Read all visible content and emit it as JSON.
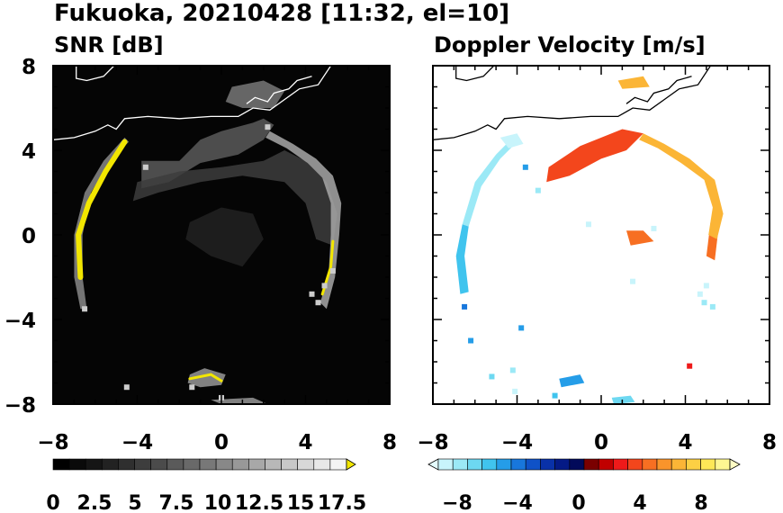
{
  "figure": {
    "title": "Fukuoka, 20210428 [11:32, el=10]"
  },
  "chart_data": [
    {
      "type": "heatmap",
      "title": "SNR [dB]",
      "xlim": [
        -8,
        8
      ],
      "ylim": [
        -8,
        8
      ],
      "xticks": [
        "−8",
        "−4",
        "0",
        "4",
        "8"
      ],
      "yticks": [
        "8",
        "4",
        "0",
        "−4",
        "−8"
      ],
      "background": "#050505",
      "coastline_color": "#ffffff",
      "colorbar": {
        "range": [
          0,
          18.75
        ],
        "ticks": [
          "0",
          "2.5",
          "5",
          "7.5",
          "10",
          "12.5",
          "15",
          "17.5"
        ],
        "colors": [
          "#000000",
          "#0a0a0a",
          "#151515",
          "#222222",
          "#2f2f2f",
          "#3d3d3d",
          "#4b4b4b",
          "#5a5a5a",
          "#696969",
          "#787878",
          "#888888",
          "#989898",
          "#a8a8a8",
          "#b8b8b8",
          "#c8c8c8",
          "#d8d8d8",
          "#e8e8e8",
          "#f4f4f4"
        ],
        "extend_color": "#f2e600"
      },
      "echo_regions": [
        {
          "name": "north-sea-clutter",
          "level": 7,
          "pts": [
            [
              -3.8,
              3.5
            ],
            [
              -2,
              3.5
            ],
            [
              -1,
              4.5
            ],
            [
              0,
              4.9
            ],
            [
              1.5,
              5.3
            ],
            [
              2,
              5.5
            ],
            [
              2.5,
              5.2
            ],
            [
              2,
              4.5
            ],
            [
              0.8,
              3.8
            ],
            [
              -1,
              3.4
            ],
            [
              -2.5,
              2.5
            ],
            [
              -3.8,
              2.2
            ]
          ]
        },
        {
          "name": "north-sea-clutter-2",
          "level": 5,
          "pts": [
            [
              -4,
              2.5
            ],
            [
              -2,
              3
            ],
            [
              0,
              3.2
            ],
            [
              2,
              3.5
            ],
            [
              3,
              4
            ],
            [
              4,
              3.5
            ],
            [
              5,
              2.5
            ],
            [
              5.5,
              1
            ],
            [
              5.3,
              -0.5
            ],
            [
              4.5,
              -0.2
            ],
            [
              4,
              1.5
            ],
            [
              3,
              2.5
            ],
            [
              1,
              2.8
            ],
            [
              -1,
              2.5
            ],
            [
              -3,
              2
            ],
            [
              -4.2,
              1.6
            ]
          ]
        },
        {
          "name": "north-plume",
          "level": 9,
          "pts": [
            [
              0.5,
              7
            ],
            [
              2,
              7.3
            ],
            [
              3,
              6.8
            ],
            [
              2.5,
              6
            ],
            [
              1,
              6
            ],
            [
              0.2,
              6.3
            ]
          ]
        },
        {
          "name": "east-ring",
          "level": 12,
          "pts": [
            [
              2.3,
              4.9
            ],
            [
              3.4,
              4.3
            ],
            [
              4.5,
              3.6
            ],
            [
              5.3,
              2.8
            ],
            [
              5.7,
              1.5
            ],
            [
              5.6,
              0
            ],
            [
              5.4,
              -2
            ],
            [
              5,
              -3.5
            ],
            [
              4.7,
              -3.2
            ],
            [
              5.1,
              -1.8
            ],
            [
              5.2,
              0
            ],
            [
              5.2,
              1.5
            ],
            [
              4.8,
              2.7
            ],
            [
              4.1,
              3.4
            ],
            [
              3.1,
              4.1
            ],
            [
              2.1,
              4.6
            ]
          ]
        },
        {
          "name": "center-clutter",
          "level": 3,
          "pts": [
            [
              -1.5,
              0.6
            ],
            [
              0,
              1.3
            ],
            [
              1.5,
              1
            ],
            [
              2,
              -0.2
            ],
            [
              1,
              -1.5
            ],
            [
              -0.5,
              -1
            ],
            [
              -1.7,
              -0.2
            ]
          ]
        },
        {
          "name": "west-ring",
          "level": 10,
          "pts": [
            [
              -4.6,
              4.6
            ],
            [
              -5.6,
              3.5
            ],
            [
              -6.5,
              2
            ],
            [
              -7,
              0
            ],
            [
              -7,
              -2
            ],
            [
              -6.7,
              -3.5
            ],
            [
              -6.4,
              -3.5
            ],
            [
              -6.6,
              -2
            ],
            [
              -6.6,
              0
            ],
            [
              -6.2,
              2
            ],
            [
              -5.3,
              3.5
            ],
            [
              -4.4,
              4.4
            ]
          ]
        },
        {
          "name": "south-echo",
          "level": 11,
          "pts": [
            [
              -1.5,
              -6.6
            ],
            [
              -0.8,
              -6.3
            ],
            [
              0.2,
              -6.6
            ],
            [
              0,
              -7.1
            ],
            [
              -1,
              -7.2
            ],
            [
              -1.6,
              -7
            ]
          ]
        },
        {
          "name": "south-echo-2",
          "level": 11,
          "pts": [
            [
              -0.5,
              -7.8
            ],
            [
              1.5,
              -7.7
            ],
            [
              2.2,
              -8
            ],
            [
              0,
              -8
            ]
          ]
        }
      ],
      "echo_strips": [
        {
          "name": "strong-west-ring",
          "pts": [
            [
              -4.6,
              4.4
            ],
            [
              -5.5,
              3
            ],
            [
              -6.3,
              1.5
            ],
            [
              -6.8,
              0
            ],
            [
              -6.7,
              -2
            ]
          ],
          "color": "#f2e600",
          "width": 6
        },
        {
          "name": "strong-east-ring",
          "pts": [
            [
              4.8,
              -2.8
            ],
            [
              5.2,
              -1.5
            ],
            [
              5.3,
              -0.3
            ]
          ],
          "color": "#f2e600",
          "width": 3
        },
        {
          "name": "strong-south-echo",
          "pts": [
            [
              -1.5,
              -6.8
            ],
            [
              -0.5,
              -6.6
            ],
            [
              0,
              -6.9
            ]
          ],
          "color": "#f2e600",
          "width": 3
        }
      ],
      "echo_cells": [
        [
          -3.6,
          3.2
        ],
        [
          4.3,
          -2.8
        ],
        [
          4.9,
          -2.4
        ],
        [
          5.3,
          -1.7
        ],
        [
          4.6,
          -3.2
        ],
        [
          2.2,
          5.1
        ],
        [
          -1.4,
          -7.2
        ],
        [
          0,
          -7.7
        ],
        [
          -6.5,
          -3.5
        ],
        [
          -4.5,
          -7.2
        ]
      ]
    },
    {
      "type": "heatmap",
      "title": "Doppler Velocity [m/s]",
      "xlim": [
        -8,
        8
      ],
      "ylim": [
        -8,
        8
      ],
      "xticks": [
        "−8",
        "−4",
        "0",
        "4",
        "8"
      ],
      "yticks": [
        "8",
        "4",
        "0",
        "−4",
        "−8"
      ],
      "background": "#ffffff",
      "coastline_color": "#000000",
      "colorbar": {
        "range": [
          -10,
          10
        ],
        "ticks": [
          "−8",
          "−4",
          "0",
          "4",
          "8"
        ],
        "colors": [
          "#c8f4fb",
          "#9be9f6",
          "#6dd8f1",
          "#40c4ee",
          "#259de8",
          "#1877dc",
          "#0f52c8",
          "#0931a8",
          "#041a86",
          "#020a5a",
          "#7a0000",
          "#c00000",
          "#ee1a1a",
          "#f3461c",
          "#f76f22",
          "#f9942b",
          "#fbb536",
          "#fcd044",
          "#fde857",
          "#fdf792"
        ],
        "extend_low": "#e3fbfd",
        "extend_high": "#fefcc4"
      },
      "echo_regions": [
        {
          "name": "north-approach",
          "velocity": 3.0,
          "pts": [
            [
              -2.5,
              3.2
            ],
            [
              -1,
              4.2
            ],
            [
              1,
              5
            ],
            [
              2,
              4.8
            ],
            [
              1.2,
              4
            ],
            [
              0,
              3.6
            ],
            [
              -1.5,
              2.8
            ],
            [
              -2.6,
              2.5
            ]
          ]
        },
        {
          "name": "north-plume",
          "velocity": 6.5,
          "pts": [
            [
              0.8,
              7.3
            ],
            [
              2,
              7.5
            ],
            [
              2.3,
              7
            ],
            [
              1,
              6.9
            ]
          ]
        },
        {
          "name": "east-ring-south",
          "velocity": 4.5,
          "pts": [
            [
              5,
              -1
            ],
            [
              5.4,
              -1.2
            ],
            [
              5.6,
              0.5
            ],
            [
              5.2,
              0.6
            ]
          ]
        },
        {
          "name": "center-echo",
          "velocity": 4.0,
          "pts": [
            [
              1.2,
              0.2
            ],
            [
              2,
              0.2
            ],
            [
              2.5,
              -0.3
            ],
            [
              1.4,
              -0.5
            ]
          ]
        },
        {
          "name": "west-blue",
          "velocity": -8.5,
          "pts": [
            [
              -4.2,
              4.6
            ],
            [
              -5,
              3.8
            ],
            [
              -6,
              2.5
            ],
            [
              -6.6,
              0.5
            ],
            [
              -6.3,
              0.4
            ],
            [
              -5.7,
              2.3
            ],
            [
              -4.8,
              3.6
            ],
            [
              -4,
              4.4
            ]
          ]
        },
        {
          "name": "west-cyan",
          "velocity": -6.5,
          "pts": [
            [
              -6.6,
              0.5
            ],
            [
              -6.9,
              -1
            ],
            [
              -6.7,
              -2.8
            ],
            [
              -6.3,
              -2.7
            ],
            [
              -6.5,
              -1
            ],
            [
              -6.3,
              0.4
            ]
          ]
        },
        {
          "name": "dark-blue-north",
          "velocity": -9.6,
          "pts": [
            [
              -4.8,
              4.6
            ],
            [
              -4,
              4.8
            ],
            [
              -3.7,
              4.3
            ],
            [
              -4.4,
              4.1
            ]
          ]
        },
        {
          "name": "east-ring",
          "velocity": 6.5,
          "pts": [
            [
              2,
              4.8
            ],
            [
              3,
              4.3
            ],
            [
              4.2,
              3.6
            ],
            [
              5.4,
              2.6
            ],
            [
              5.8,
              1
            ],
            [
              5.5,
              -0.2
            ],
            [
              5.1,
              0
            ],
            [
              5.3,
              1.3
            ],
            [
              4.9,
              2.6
            ],
            [
              3.8,
              3.4
            ],
            [
              2.7,
              4.1
            ],
            [
              1.8,
              4.5
            ]
          ]
        },
        {
          "name": "south-cells",
          "velocity": -5.2,
          "pts": [
            [
              -2,
              -6.8
            ],
            [
              -1,
              -6.6
            ],
            [
              -0.8,
              -7
            ],
            [
              -1.9,
              -7.2
            ]
          ]
        },
        {
          "name": "south-cells-2",
          "velocity": -8,
          "pts": [
            [
              0.5,
              -7.7
            ],
            [
              1.4,
              -7.6
            ],
            [
              1.6,
              -7.9
            ],
            [
              0.6,
              -8
            ]
          ]
        }
      ],
      "echo_cells": [
        [
          -3.6,
          3.2,
          -6
        ],
        [
          -3,
          2.1,
          -9
        ],
        [
          4.9,
          -3.2,
          -9
        ],
        [
          5.3,
          -3.4,
          -8.8
        ],
        [
          4.7,
          -2.8,
          -9.3
        ],
        [
          5.0,
          -2.4,
          -9.5
        ],
        [
          4.2,
          -6.2,
          2.5
        ],
        [
          -4.2,
          -6.4,
          -9
        ],
        [
          -6.5,
          -3.4,
          -5
        ],
        [
          -6.2,
          -5,
          -6
        ],
        [
          -5.2,
          -6.7,
          -8
        ],
        [
          1.5,
          -2.2,
          -9.5
        ],
        [
          -0.6,
          0.5,
          -9.5
        ],
        [
          2.5,
          0.3,
          -9.8
        ],
        [
          -2.2,
          -7.6,
          -7
        ],
        [
          -4.1,
          -7.4,
          -9.5
        ],
        [
          -3.8,
          -4.4,
          -6
        ]
      ]
    }
  ]
}
